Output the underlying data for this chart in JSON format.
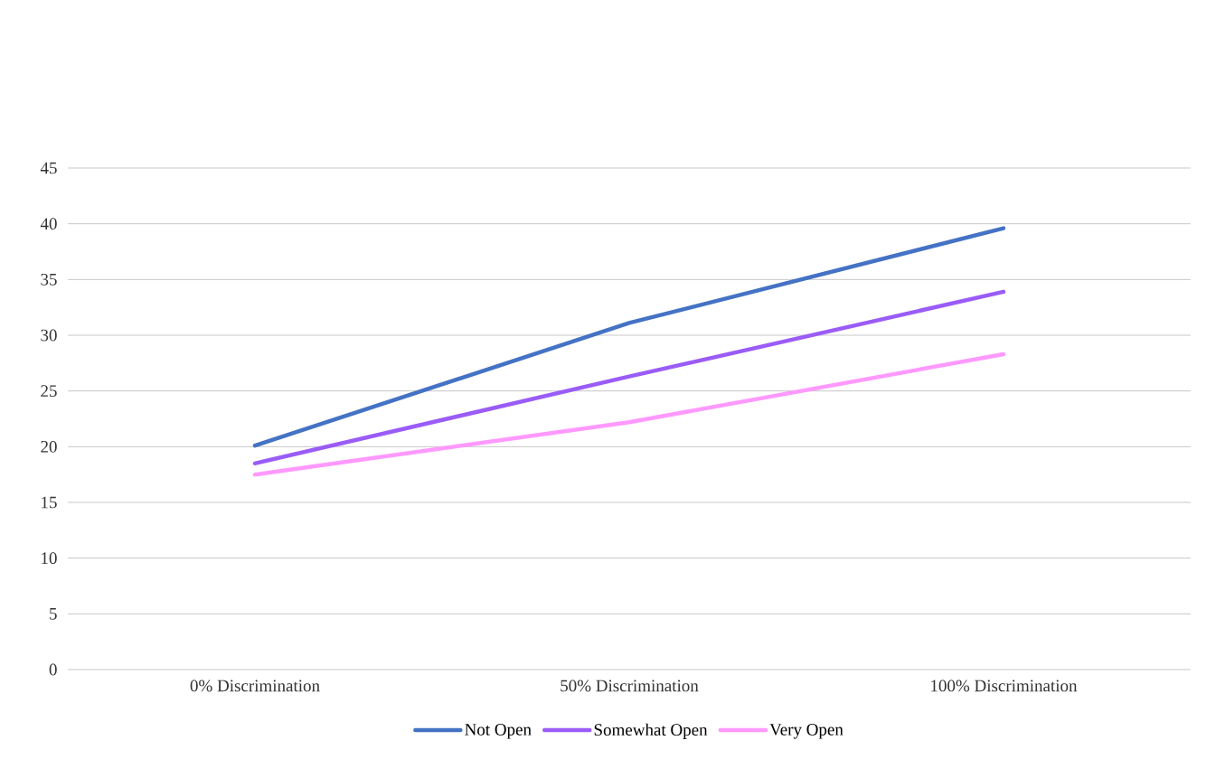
{
  "chart_data": {
    "type": "line",
    "categories": [
      "0% Discrimination",
      "50% Discrimination",
      "100% Discrimination"
    ],
    "series": [
      {
        "name": "Not Open",
        "color": "#4472c4",
        "values": [
          20.1,
          31.1,
          39.6
        ]
      },
      {
        "name": "Somewhat Open",
        "color": "#9a5cf7",
        "values": [
          18.5,
          26.3,
          33.9
        ]
      },
      {
        "name": "Very Open",
        "color": "#ff99ff",
        "values": [
          17.5,
          22.2,
          28.3
        ]
      }
    ],
    "ylim": [
      0,
      45
    ],
    "yticks": [
      0,
      5,
      10,
      15,
      20,
      25,
      30,
      35,
      40,
      45
    ],
    "grid": "y",
    "legend": "bottom"
  }
}
